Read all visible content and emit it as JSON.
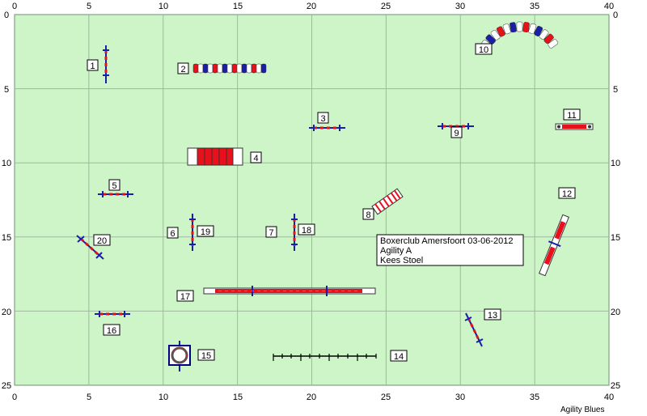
{
  "axes": {
    "x_ticks": [
      "0",
      "5",
      "10",
      "15",
      "20",
      "25",
      "30",
      "35",
      "40"
    ],
    "y_ticks": [
      "0",
      "5",
      "10",
      "15",
      "20",
      "25"
    ]
  },
  "colors": {
    "field": "#cdf5c8",
    "grid": "#9fb8a0",
    "red": "#e8101a",
    "blue": "#1a1fa8",
    "navy": "#000080"
  },
  "labels": [
    "1",
    "2",
    "3",
    "4",
    "5",
    "6",
    "7",
    "8",
    "9",
    "10",
    "11",
    "12",
    "13",
    "14",
    "15",
    "16",
    "17",
    "18",
    "19",
    "20"
  ],
  "info": {
    "line1": "Boxerclub Amersfoort 03-06-2012",
    "line2": "Agility A",
    "line3": "Kees Stoel"
  },
  "brand": "Agility Blues"
}
